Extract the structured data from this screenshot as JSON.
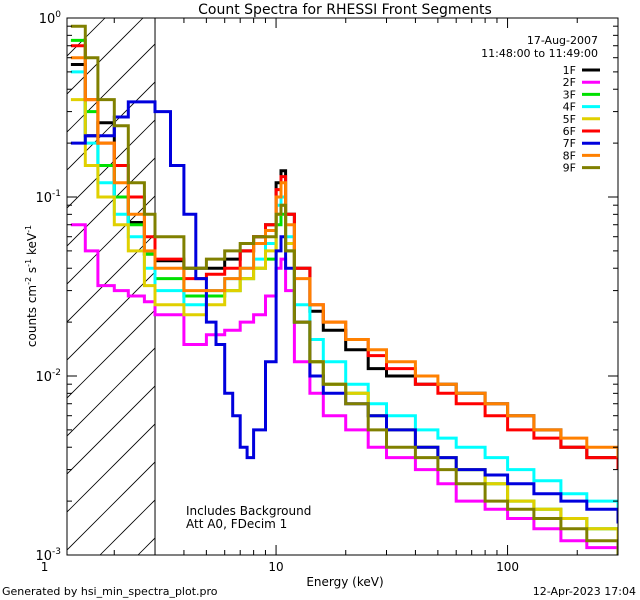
{
  "chart_data": {
    "type": "line",
    "title": "Count Spectra for RHESSI Front Segments",
    "xlabel": "Energy (keV)",
    "ylabel": "counts cm^-2 s^-1 keV^-1",
    "ylabel_parts": {
      "base": "counts cm",
      "exp1": "-2",
      "mid1": " s",
      "exp2": "-1",
      "mid2": " keV",
      "exp3": "-1"
    },
    "xscale": "log",
    "yscale": "log",
    "xlim": [
      1.25,
      300
    ],
    "ylim": [
      0.001,
      1.0
    ],
    "x_ticks": [
      {
        "value": 1,
        "label": "1"
      },
      {
        "value": 10,
        "label": "10"
      },
      {
        "value": 100,
        "label": "100"
      }
    ],
    "y_ticks": [
      {
        "value": 0.001,
        "base": "10",
        "exp": "-3"
      },
      {
        "value": 0.01,
        "base": "10",
        "exp": "-2"
      },
      {
        "value": 0.1,
        "base": "10",
        "exp": "-1"
      },
      {
        "value": 1,
        "base": "10",
        "exp": "0"
      }
    ],
    "date": "17-Aug-2007",
    "time_range": "11:48:00 to 11:49:00",
    "annotations": [
      "Includes Background",
      "Att A0, FDecim 1"
    ],
    "threshold_energy_kev": 3,
    "legend_position": "top-right",
    "series": [
      {
        "name": "1F",
        "color": "#000000",
        "values": [
          [
            1.3,
            0.55
          ],
          [
            1.5,
            0.22
          ],
          [
            1.7,
            0.26
          ],
          [
            2.0,
            0.1
          ],
          [
            2.3,
            0.072
          ],
          [
            2.7,
            0.048
          ],
          [
            3.0,
            0.044
          ],
          [
            4.0,
            0.04
          ],
          [
            5.0,
            0.04
          ],
          [
            6.0,
            0.045
          ],
          [
            7.0,
            0.05
          ],
          [
            8.0,
            0.06
          ],
          [
            9.0,
            0.07
          ],
          [
            10.0,
            0.12
          ],
          [
            10.5,
            0.14
          ],
          [
            11.0,
            0.08
          ],
          [
            12.0,
            0.04
          ],
          [
            14.0,
            0.023
          ],
          [
            16.0,
            0.018
          ],
          [
            20.0,
            0.014
          ],
          [
            25.0,
            0.011
          ],
          [
            30.0,
            0.01
          ],
          [
            40.0,
            0.009
          ],
          [
            50.0,
            0.009
          ],
          [
            60.0,
            0.008
          ],
          [
            80.0,
            0.007
          ],
          [
            100.0,
            0.006
          ],
          [
            130.0,
            0.005
          ],
          [
            170.0,
            0.004
          ],
          [
            220.0,
            0.0035
          ],
          [
            300.0,
            0.003
          ]
        ]
      },
      {
        "name": "2F",
        "color": "#ff00ff",
        "values": [
          [
            1.3,
            0.07
          ],
          [
            1.5,
            0.05
          ],
          [
            1.7,
            0.032
          ],
          [
            2.0,
            0.03
          ],
          [
            2.3,
            0.028
          ],
          [
            2.7,
            0.026
          ],
          [
            3.0,
            0.022
          ],
          [
            4.0,
            0.015
          ],
          [
            5.0,
            0.017
          ],
          [
            6.0,
            0.018
          ],
          [
            7.0,
            0.02
          ],
          [
            8.0,
            0.022
          ],
          [
            9.0,
            0.028
          ],
          [
            10.0,
            0.04
          ],
          [
            10.5,
            0.045
          ],
          [
            11.0,
            0.03
          ],
          [
            12.0,
            0.012
          ],
          [
            14.0,
            0.008
          ],
          [
            16.0,
            0.006
          ],
          [
            20.0,
            0.005
          ],
          [
            25.0,
            0.004
          ],
          [
            30.0,
            0.0035
          ],
          [
            40.0,
            0.003
          ],
          [
            50.0,
            0.0025
          ],
          [
            60.0,
            0.002
          ],
          [
            80.0,
            0.0018
          ],
          [
            100.0,
            0.0016
          ],
          [
            130.0,
            0.0014
          ],
          [
            170.0,
            0.0012
          ],
          [
            220.0,
            0.0011
          ],
          [
            300.0,
            0.001
          ]
        ]
      },
      {
        "name": "3F",
        "color": "#00e000",
        "values": [
          [
            1.3,
            0.75
          ],
          [
            1.5,
            0.3
          ],
          [
            1.7,
            0.15
          ],
          [
            2.0,
            0.1
          ],
          [
            2.3,
            0.07
          ],
          [
            2.7,
            0.048
          ],
          [
            3.0,
            0.035
          ],
          [
            4.0,
            0.028
          ],
          [
            5.0,
            0.028
          ],
          [
            6.0,
            0.03
          ],
          [
            7.0,
            0.035
          ],
          [
            8.0,
            0.04
          ],
          [
            9.0,
            0.045
          ],
          [
            10.0,
            0.07
          ],
          [
            10.5,
            0.08
          ],
          [
            11.0,
            0.05
          ],
          [
            12.0,
            0.02
          ],
          [
            14.0,
            0.012
          ],
          [
            16.0,
            0.009
          ],
          [
            20.0,
            0.008
          ],
          [
            25.0,
            0.006
          ],
          [
            30.0,
            0.005
          ],
          [
            40.0,
            0.004
          ],
          [
            50.0,
            0.0035
          ],
          [
            60.0,
            0.003
          ],
          [
            80.0,
            0.0025
          ],
          [
            100.0,
            0.002
          ],
          [
            130.0,
            0.0018
          ],
          [
            170.0,
            0.0016
          ],
          [
            220.0,
            0.0014
          ],
          [
            300.0,
            0.0012
          ]
        ]
      },
      {
        "name": "4F",
        "color": "#00ffff",
        "values": [
          [
            1.3,
            0.5
          ],
          [
            1.5,
            0.2
          ],
          [
            1.7,
            0.12
          ],
          [
            2.0,
            0.08
          ],
          [
            2.3,
            0.06
          ],
          [
            2.7,
            0.04
          ],
          [
            3.0,
            0.03
          ],
          [
            4.0,
            0.025
          ],
          [
            5.0,
            0.03
          ],
          [
            6.0,
            0.035
          ],
          [
            7.0,
            0.04
          ],
          [
            8.0,
            0.045
          ],
          [
            9.0,
            0.055
          ],
          [
            10.0,
            0.09
          ],
          [
            10.5,
            0.1
          ],
          [
            11.0,
            0.06
          ],
          [
            12.0,
            0.025
          ],
          [
            14.0,
            0.016
          ],
          [
            16.0,
            0.012
          ],
          [
            20.0,
            0.009
          ],
          [
            25.0,
            0.007
          ],
          [
            30.0,
            0.006
          ],
          [
            40.0,
            0.005
          ],
          [
            50.0,
            0.0045
          ],
          [
            60.0,
            0.004
          ],
          [
            80.0,
            0.0035
          ],
          [
            100.0,
            0.003
          ],
          [
            130.0,
            0.0026
          ],
          [
            170.0,
            0.0022
          ],
          [
            220.0,
            0.002
          ],
          [
            300.0,
            0.0018
          ]
        ]
      },
      {
        "name": "5F",
        "color": "#e0d000",
        "values": [
          [
            1.3,
            0.35
          ],
          [
            1.5,
            0.15
          ],
          [
            1.7,
            0.1
          ],
          [
            2.0,
            0.07
          ],
          [
            2.3,
            0.05
          ],
          [
            2.7,
            0.032
          ],
          [
            3.0,
            0.025
          ],
          [
            4.0,
            0.022
          ],
          [
            5.0,
            0.025
          ],
          [
            6.0,
            0.03
          ],
          [
            7.0,
            0.035
          ],
          [
            8.0,
            0.04
          ],
          [
            9.0,
            0.05
          ],
          [
            10.0,
            0.08
          ],
          [
            10.5,
            0.09
          ],
          [
            11.0,
            0.055
          ],
          [
            12.0,
            0.02
          ],
          [
            14.0,
            0.012
          ],
          [
            16.0,
            0.009
          ],
          [
            20.0,
            0.008
          ],
          [
            25.0,
            0.006
          ],
          [
            30.0,
            0.005
          ],
          [
            40.0,
            0.004
          ],
          [
            50.0,
            0.0035
          ],
          [
            60.0,
            0.003
          ],
          [
            80.0,
            0.0025
          ],
          [
            100.0,
            0.002
          ],
          [
            130.0,
            0.0018
          ],
          [
            170.0,
            0.0016
          ],
          [
            220.0,
            0.0014
          ],
          [
            300.0,
            0.0012
          ]
        ]
      },
      {
        "name": "6F",
        "color": "#ff0000",
        "values": [
          [
            1.3,
            0.7
          ],
          [
            1.5,
            0.35
          ],
          [
            1.7,
            0.2
          ],
          [
            2.0,
            0.15
          ],
          [
            2.3,
            0.1
          ],
          [
            2.7,
            0.06
          ],
          [
            3.0,
            0.045
          ],
          [
            4.0,
            0.035
          ],
          [
            5.0,
            0.037
          ],
          [
            6.0,
            0.04
          ],
          [
            7.0,
            0.05
          ],
          [
            8.0,
            0.06
          ],
          [
            9.0,
            0.07
          ],
          [
            10.0,
            0.11
          ],
          [
            10.5,
            0.13
          ],
          [
            11.0,
            0.08
          ],
          [
            12.0,
            0.04
          ],
          [
            14.0,
            0.025
          ],
          [
            16.0,
            0.02
          ],
          [
            20.0,
            0.016
          ],
          [
            25.0,
            0.013
          ],
          [
            30.0,
            0.011
          ],
          [
            40.0,
            0.009
          ],
          [
            50.0,
            0.008
          ],
          [
            60.0,
            0.007
          ],
          [
            80.0,
            0.006
          ],
          [
            100.0,
            0.005
          ],
          [
            130.0,
            0.0045
          ],
          [
            170.0,
            0.004
          ],
          [
            220.0,
            0.0035
          ],
          [
            300.0,
            0.003
          ]
        ]
      },
      {
        "name": "7F",
        "color": "#0000dd",
        "values": [
          [
            1.3,
            0.2
          ],
          [
            1.5,
            0.22
          ],
          [
            1.7,
            0.22
          ],
          [
            2.0,
            0.28
          ],
          [
            2.3,
            0.34
          ],
          [
            2.7,
            0.34
          ],
          [
            3.0,
            0.3
          ],
          [
            3.5,
            0.15
          ],
          [
            4.0,
            0.08
          ],
          [
            4.5,
            0.035
          ],
          [
            5.0,
            0.02
          ],
          [
            5.5,
            0.015
          ],
          [
            6.0,
            0.008
          ],
          [
            6.5,
            0.006
          ],
          [
            7.0,
            0.004
          ],
          [
            7.5,
            0.0035
          ],
          [
            8.0,
            0.005
          ],
          [
            9.0,
            0.012
          ],
          [
            10.0,
            0.05
          ],
          [
            10.5,
            0.06
          ],
          [
            11.0,
            0.04
          ],
          [
            12.0,
            0.02
          ],
          [
            14.0,
            0.01
          ],
          [
            16.0,
            0.008
          ],
          [
            20.0,
            0.007
          ],
          [
            25.0,
            0.006
          ],
          [
            30.0,
            0.005
          ],
          [
            40.0,
            0.004
          ],
          [
            50.0,
            0.0035
          ],
          [
            60.0,
            0.003
          ],
          [
            80.0,
            0.0028
          ],
          [
            100.0,
            0.0025
          ],
          [
            130.0,
            0.0022
          ],
          [
            170.0,
            0.002
          ],
          [
            220.0,
            0.0018
          ],
          [
            300.0,
            0.0015
          ]
        ]
      },
      {
        "name": "8F",
        "color": "#ff8000",
        "values": [
          [
            1.3,
            0.6
          ],
          [
            1.5,
            0.35
          ],
          [
            1.7,
            0.2
          ],
          [
            2.0,
            0.12
          ],
          [
            2.3,
            0.08
          ],
          [
            2.7,
            0.05
          ],
          [
            3.0,
            0.04
          ],
          [
            4.0,
            0.03
          ],
          [
            5.0,
            0.03
          ],
          [
            6.0,
            0.035
          ],
          [
            7.0,
            0.04
          ],
          [
            8.0,
            0.055
          ],
          [
            9.0,
            0.065
          ],
          [
            10.0,
            0.1
          ],
          [
            10.5,
            0.12
          ],
          [
            11.0,
            0.07
          ],
          [
            12.0,
            0.035
          ],
          [
            14.0,
            0.025
          ],
          [
            16.0,
            0.02
          ],
          [
            20.0,
            0.016
          ],
          [
            25.0,
            0.014
          ],
          [
            30.0,
            0.012
          ],
          [
            40.0,
            0.01
          ],
          [
            50.0,
            0.009
          ],
          [
            60.0,
            0.008
          ],
          [
            80.0,
            0.007
          ],
          [
            100.0,
            0.006
          ],
          [
            130.0,
            0.005
          ],
          [
            170.0,
            0.0045
          ],
          [
            220.0,
            0.004
          ],
          [
            300.0,
            0.0035
          ]
        ]
      },
      {
        "name": "9F",
        "color": "#808000",
        "values": [
          [
            1.3,
            0.9
          ],
          [
            1.5,
            0.6
          ],
          [
            1.7,
            0.35
          ],
          [
            2.0,
            0.25
          ],
          [
            2.3,
            0.12
          ],
          [
            2.7,
            0.08
          ],
          [
            3.0,
            0.06
          ],
          [
            4.0,
            0.04
          ],
          [
            5.0,
            0.045
          ],
          [
            6.0,
            0.05
          ],
          [
            7.0,
            0.055
          ],
          [
            8.0,
            0.06
          ],
          [
            9.0,
            0.06
          ],
          [
            10.0,
            0.08
          ],
          [
            10.5,
            0.09
          ],
          [
            11.0,
            0.05
          ],
          [
            12.0,
            0.02
          ],
          [
            14.0,
            0.012
          ],
          [
            16.0,
            0.009
          ],
          [
            20.0,
            0.007
          ],
          [
            25.0,
            0.005
          ],
          [
            30.0,
            0.004
          ],
          [
            40.0,
            0.0035
          ],
          [
            50.0,
            0.003
          ],
          [
            60.0,
            0.0025
          ],
          [
            80.0,
            0.002
          ],
          [
            100.0,
            0.0018
          ],
          [
            130.0,
            0.0016
          ],
          [
            170.0,
            0.0014
          ],
          [
            220.0,
            0.0012
          ],
          [
            300.0,
            0.001
          ]
        ]
      }
    ]
  },
  "footer": {
    "generated_by": "Generated by hsi_min_spectra_plot.pro",
    "timestamp": "12-Apr-2023 17:04"
  }
}
